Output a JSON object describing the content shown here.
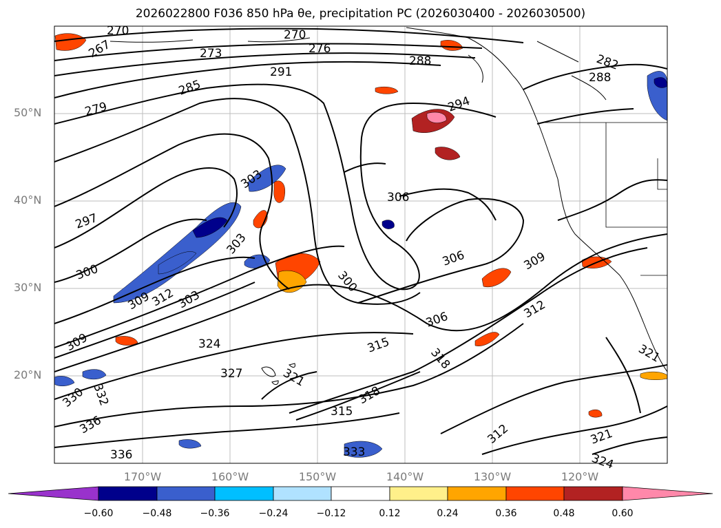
{
  "title": "2026022800 F036 850 hPa θe, precipitation PC (2026030400 - 2026030500)",
  "map": {
    "lat_labels": [
      {
        "label": "50°N",
        "lat": 50
      },
      {
        "label": "40°N",
        "lat": 40
      },
      {
        "label": "30°N",
        "lat": 30
      },
      {
        "label": "20°N",
        "lat": 20
      }
    ],
    "lon_labels": [
      {
        "label": "170°W",
        "lon": -170
      },
      {
        "label": "160°W",
        "lon": -160
      },
      {
        "label": "150°W",
        "lon": -150
      },
      {
        "label": "140°W",
        "lon": -140
      },
      {
        "label": "130°W",
        "lon": -130
      },
      {
        "label": "120°W",
        "lon": -120
      }
    ],
    "contour_labels": [
      "270",
      "267",
      "273",
      "276",
      "270",
      "288",
      "282",
      "291",
      "285",
      "279",
      "294",
      "288",
      "297",
      "303",
      "306",
      "300",
      "303",
      "306",
      "309",
      "300",
      "312",
      "309",
      "303",
      "306",
      "309",
      "312",
      "324",
      "315",
      "318",
      "321",
      "327",
      "321",
      "330",
      "315",
      "318",
      "336",
      "332",
      "312",
      "321",
      "324",
      "336",
      "333"
    ]
  },
  "colorbar": {
    "tick_labels": [
      "−0.60",
      "−0.48",
      "−0.36",
      "−0.24",
      "−0.12",
      "0.12",
      "0.24",
      "0.36",
      "0.48",
      "0.60"
    ],
    "colors": [
      "#9932cc",
      "#00008b",
      "#3a5fcd",
      "#00bfff",
      "#b0e2ff",
      "#ffffff",
      "#fff08a",
      "#ffa500",
      "#ff4500",
      "#b22222",
      "#ff88aa",
      "#ff88aa"
    ]
  }
}
